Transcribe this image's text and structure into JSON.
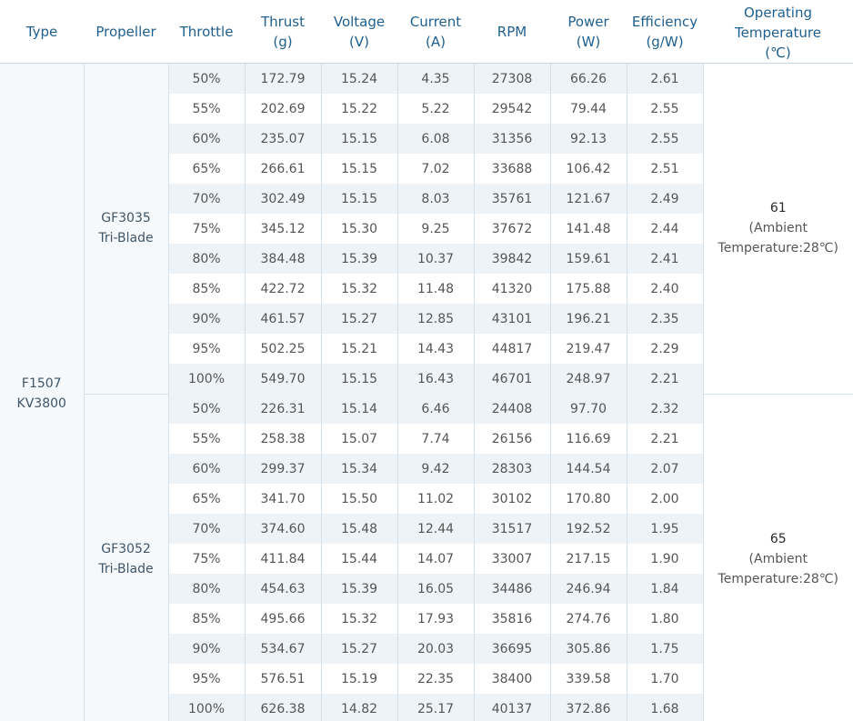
{
  "headers": {
    "type": "Type",
    "propeller": "Propeller",
    "throttle": "Throttle",
    "thrust": [
      "Thrust",
      "(g)"
    ],
    "voltage": [
      "Voltage",
      "(V)"
    ],
    "current": [
      "Current",
      "(A)"
    ],
    "rpm": "RPM",
    "power": [
      "Power",
      "(W)"
    ],
    "efficiency": [
      "Efficiency",
      "(g/W)"
    ],
    "temperature": [
      "Operating",
      "Temperature",
      "(℃)"
    ]
  },
  "motor": [
    "F1507",
    "KV3800"
  ],
  "groups": [
    {
      "propeller": [
        "GF3035",
        "Tri-Blade"
      ],
      "temp_value": "61",
      "temp_note": [
        "(Ambient",
        "Temperature:28℃)"
      ],
      "rows": [
        [
          "50%",
          "172.79",
          "15.24",
          "4.35",
          "27308",
          "66.26",
          "2.61"
        ],
        [
          "55%",
          "202.69",
          "15.22",
          "5.22",
          "29542",
          "79.44",
          "2.55"
        ],
        [
          "60%",
          "235.07",
          "15.15",
          "6.08",
          "31356",
          "92.13",
          "2.55"
        ],
        [
          "65%",
          "266.61",
          "15.15",
          "7.02",
          "33688",
          "106.42",
          "2.51"
        ],
        [
          "70%",
          "302.49",
          "15.15",
          "8.03",
          "35761",
          "121.67",
          "2.49"
        ],
        [
          "75%",
          "345.12",
          "15.30",
          "9.25",
          "37672",
          "141.48",
          "2.44"
        ],
        [
          "80%",
          "384.48",
          "15.39",
          "10.37",
          "39842",
          "159.61",
          "2.41"
        ],
        [
          "85%",
          "422.72",
          "15.32",
          "11.48",
          "41320",
          "175.88",
          "2.40"
        ],
        [
          "90%",
          "461.57",
          "15.27",
          "12.85",
          "43101",
          "196.21",
          "2.35"
        ],
        [
          "95%",
          "502.25",
          "15.21",
          "14.43",
          "44817",
          "219.47",
          "2.29"
        ],
        [
          "100%",
          "549.70",
          "15.15",
          "16.43",
          "46701",
          "248.97",
          "2.21"
        ]
      ]
    },
    {
      "propeller": [
        "GF3052",
        "Tri-Blade"
      ],
      "temp_value": "65",
      "temp_note": [
        "(Ambient",
        "Temperature:28℃)"
      ],
      "rows": [
        [
          "50%",
          "226.31",
          "15.14",
          "6.46",
          "24408",
          "97.70",
          "2.32"
        ],
        [
          "55%",
          "258.38",
          "15.07",
          "7.74",
          "26156",
          "116.69",
          "2.21"
        ],
        [
          "60%",
          "299.37",
          "15.34",
          "9.42",
          "28303",
          "144.54",
          "2.07"
        ],
        [
          "65%",
          "341.70",
          "15.50",
          "11.02",
          "30102",
          "170.80",
          "2.00"
        ],
        [
          "70%",
          "374.60",
          "15.48",
          "12.44",
          "31517",
          "192.52",
          "1.95"
        ],
        [
          "75%",
          "411.84",
          "15.44",
          "14.07",
          "33007",
          "217.15",
          "1.90"
        ],
        [
          "80%",
          "454.63",
          "15.39",
          "16.05",
          "34486",
          "246.94",
          "1.84"
        ],
        [
          "85%",
          "495.66",
          "15.32",
          "17.93",
          "35816",
          "274.76",
          "1.80"
        ],
        [
          "90%",
          "534.67",
          "15.27",
          "20.03",
          "36695",
          "305.86",
          "1.75"
        ],
        [
          "95%",
          "576.51",
          "15.19",
          "22.35",
          "38400",
          "339.58",
          "1.70"
        ],
        [
          "100%",
          "626.38",
          "14.82",
          "25.17",
          "40137",
          "372.86",
          "1.68"
        ]
      ]
    }
  ]
}
